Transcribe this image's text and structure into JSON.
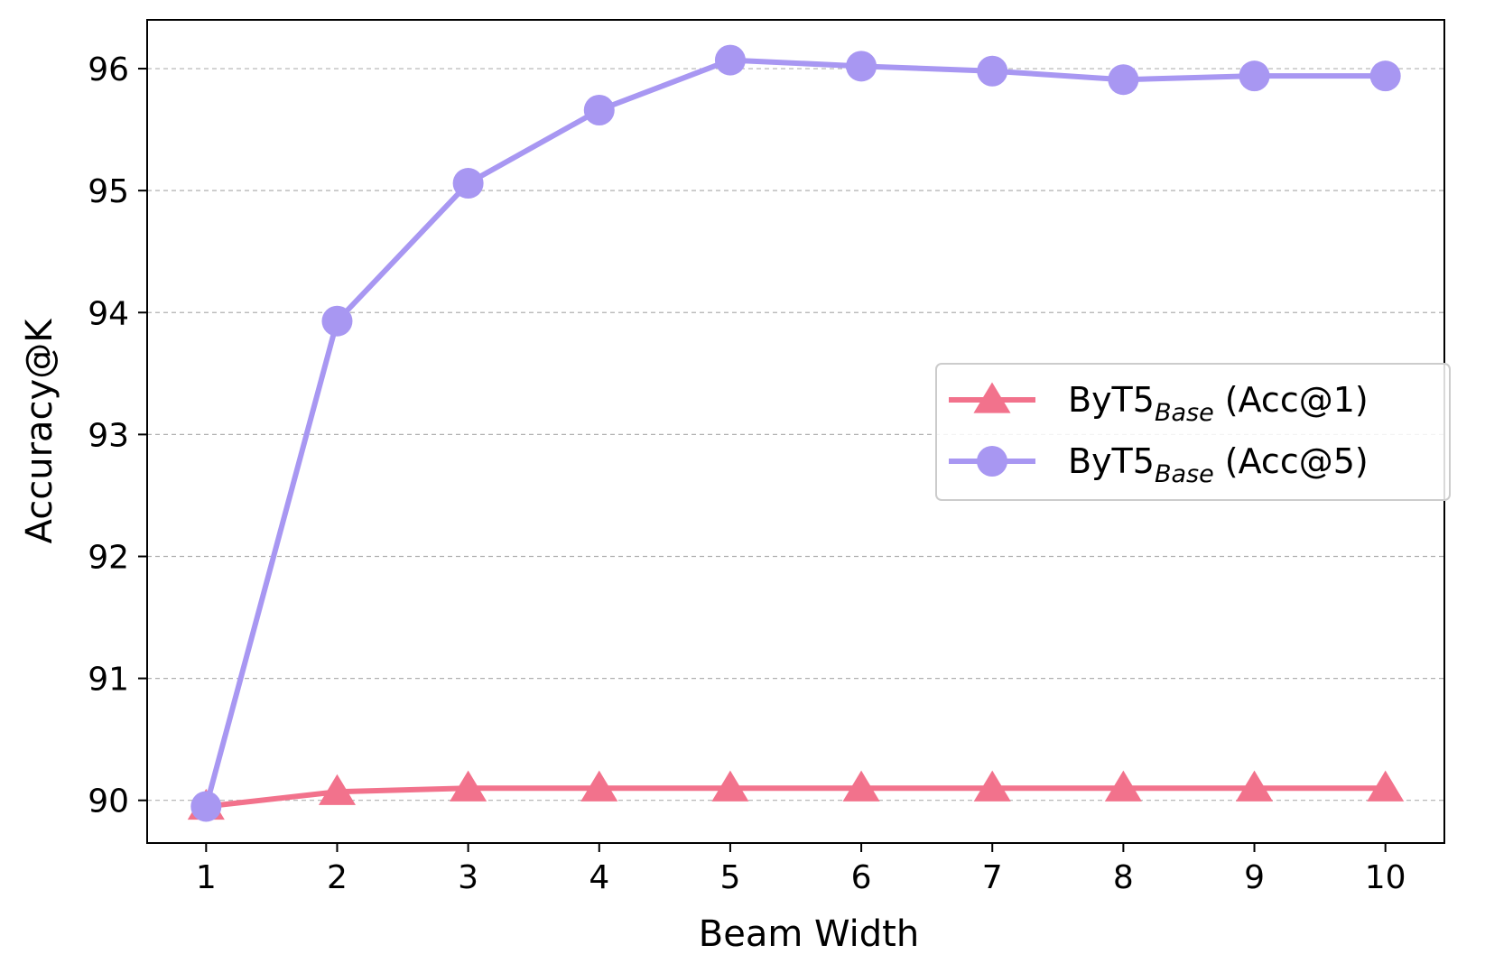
{
  "chart_data": {
    "type": "line",
    "xlabel": "Beam Width",
    "ylabel": "Accuracy@K",
    "x": [
      1,
      2,
      3,
      4,
      5,
      6,
      7,
      8,
      9,
      10
    ],
    "xlim": [
      0.55,
      10.45
    ],
    "ylim": [
      89.65,
      96.4
    ],
    "x_ticks": [
      "1",
      "2",
      "3",
      "4",
      "5",
      "6",
      "7",
      "8",
      "9",
      "10"
    ],
    "y_ticks": [
      "90",
      "91",
      "92",
      "93",
      "94",
      "95",
      "96"
    ],
    "grid": "horizontal dashed",
    "legend_position": "center-right",
    "series": [
      {
        "name_main": "ByT5",
        "name_sub": "Base",
        "name_suffix": " (Acc@1)",
        "marker": "triangle",
        "color": "#f2728c",
        "values": [
          89.95,
          90.07,
          90.1,
          90.1,
          90.1,
          90.1,
          90.1,
          90.1,
          90.1,
          90.1
        ]
      },
      {
        "name_main": "ByT5",
        "name_sub": "Base",
        "name_suffix": " (Acc@5)",
        "marker": "circle",
        "color": "#a897f2",
        "values": [
          89.95,
          93.93,
          95.06,
          95.66,
          96.07,
          96.02,
          95.98,
          95.91,
          95.94,
          95.94
        ]
      }
    ]
  }
}
